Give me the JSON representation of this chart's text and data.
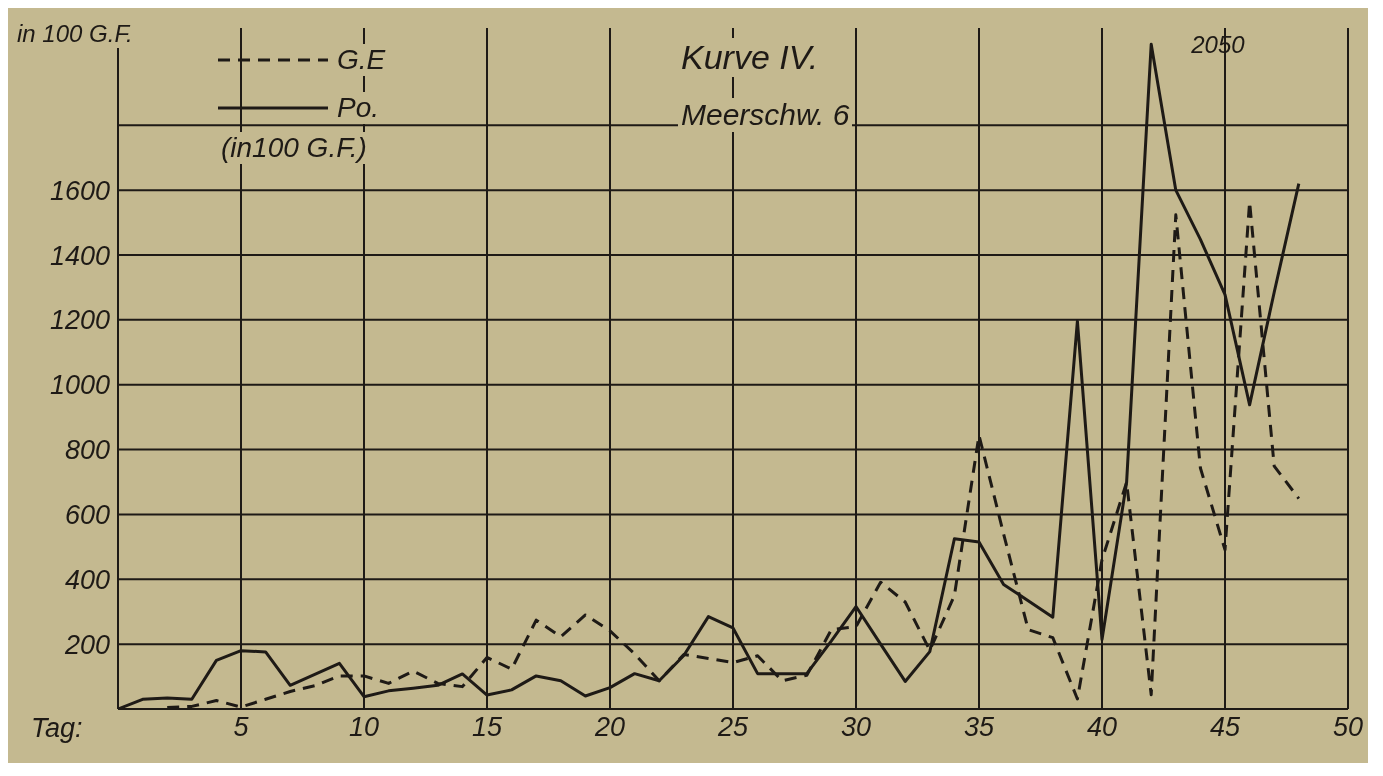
{
  "chart_data": {
    "type": "line",
    "title": "Kurve IV.",
    "subtitle": "Meerschw. 6",
    "ylabel": "in 100 G.F.",
    "xlabel": "Tag:",
    "x": [
      0,
      1,
      2,
      3,
      4,
      5,
      6,
      7,
      8,
      9,
      10,
      11,
      12,
      13,
      14,
      15,
      16,
      17,
      18,
      19,
      20,
      21,
      22,
      23,
      24,
      25,
      26,
      27,
      28,
      29,
      30,
      31,
      32,
      33,
      34,
      35,
      36,
      37,
      38,
      39,
      40,
      41,
      42,
      43,
      44,
      45,
      46,
      47,
      48
    ],
    "series": [
      {
        "name": "G.E",
        "color": "#1e1a16",
        "line_style": "dashed",
        "values": [
          null,
          null,
          5,
          8,
          26,
          6,
          30,
          54,
          72,
          102,
          102,
          79,
          117,
          79,
          69,
          159,
          123,
          274,
          223,
          290,
          241,
          170,
          87,
          168,
          156,
          143,
          164,
          87,
          104,
          245,
          254,
          391,
          330,
          181,
          350,
          844,
          540,
          245,
          220,
          31,
          460,
          699,
          44,
          1524,
          743,
          491,
          1564,
          749,
          649
        ]
      },
      {
        "name": "Po.",
        "color": "#1e1a16",
        "line_style": "solid",
        "values": [
          0,
          30,
          34,
          30,
          150,
          180,
          176,
          73,
          107,
          141,
          38,
          56,
          64,
          73,
          108,
          43,
          59,
          102,
          87,
          40,
          66,
          109,
          87,
          165,
          285,
          250,
          109,
          109,
          109,
          210,
          316,
          200,
          85,
          177,
          525,
          515,
          384,
          334,
          283,
          1196,
          214,
          699,
          2050,
          1600,
          1448,
          1278,
          938,
          1285,
          1620
        ]
      }
    ],
    "annotations": [
      "(in100 G.F.)",
      {
        "text": "2050",
        "x": 42,
        "y": 2050
      }
    ],
    "xlim": [
      0,
      50
    ],
    "xticks": [
      5,
      10,
      15,
      20,
      25,
      30,
      35,
      40,
      45,
      50
    ],
    "ylim": [
      0,
      2100
    ],
    "yticks": [
      200,
      400,
      600,
      800,
      1000,
      1200,
      1400,
      1600,
      {
        "value": 1800,
        "label": null
      }
    ],
    "grid": true,
    "legend": "top left"
  }
}
